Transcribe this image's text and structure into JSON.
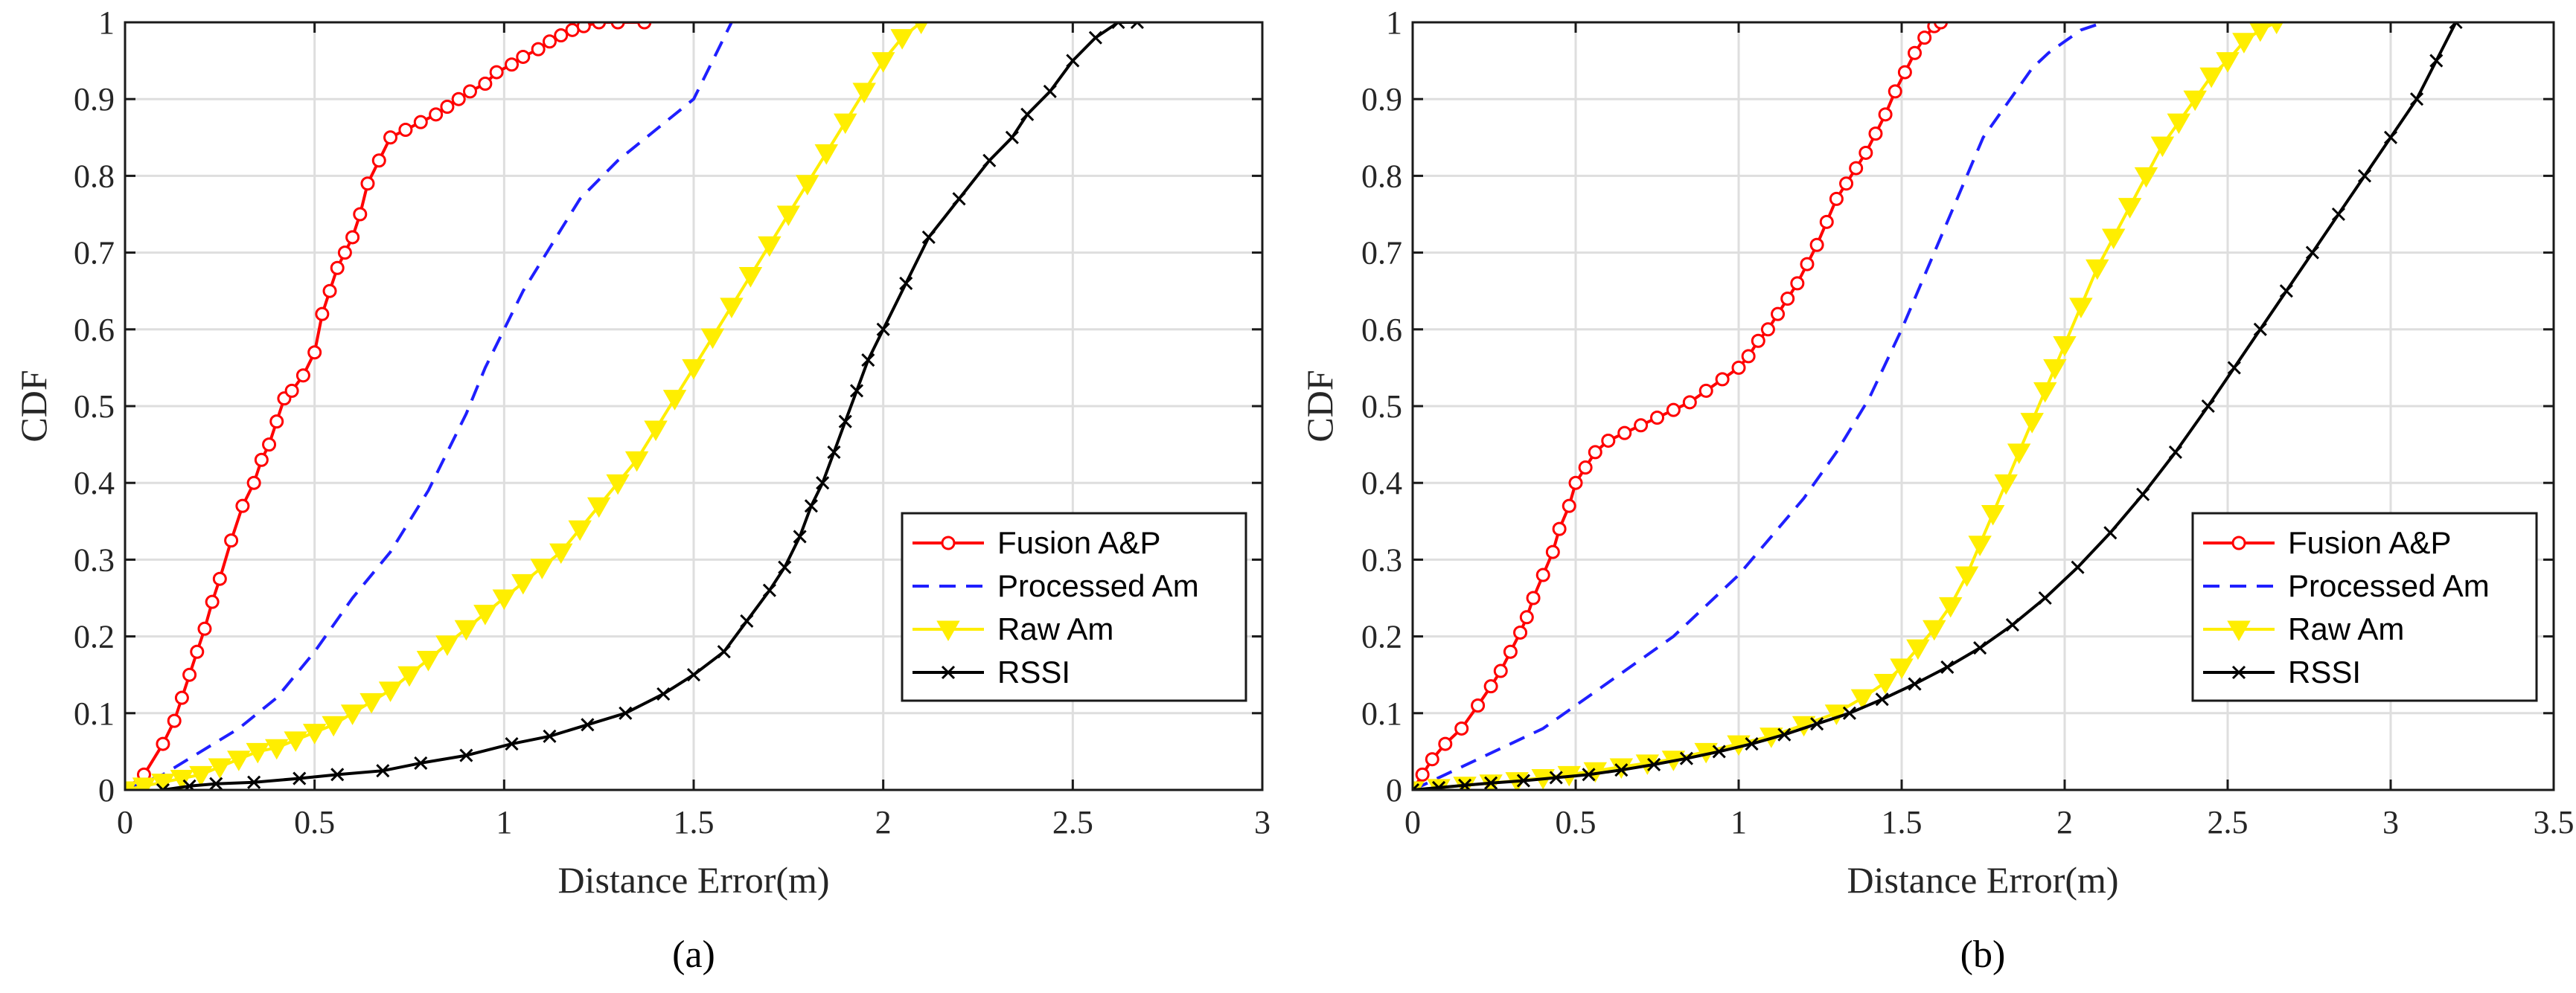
{
  "chart_data": [
    {
      "type": "line",
      "caption": "(a)",
      "xlabel": "Distance Error(m)",
      "ylabel": "CDF",
      "xlim": [
        0,
        3
      ],
      "ylim": [
        0,
        1
      ],
      "xticks": [
        0,
        0.5,
        1,
        1.5,
        2,
        2.5,
        3
      ],
      "xtick_labels": [
        "0",
        "0.5",
        "1",
        "1.5",
        "2",
        "2.5",
        "3"
      ],
      "yticks": [
        0,
        0.1,
        0.2,
        0.3,
        0.4,
        0.5,
        0.6,
        0.7,
        0.8,
        0.9,
        1
      ],
      "ytick_labels": [
        "0",
        "0.1",
        "0.2",
        "0.3",
        "0.4",
        "0.5",
        "0.6",
        "0.7",
        "0.8",
        "0.9",
        "1"
      ],
      "grid": true,
      "legend_position": "bottom-right",
      "series": [
        {
          "name": "Fusion A&P",
          "color": "#ff0000",
          "style": "solid",
          "marker": "circle",
          "x": [
            0,
            0.05,
            0.1,
            0.13,
            0.15,
            0.17,
            0.19,
            0.21,
            0.23,
            0.25,
            0.28,
            0.31,
            0.34,
            0.36,
            0.38,
            0.4,
            0.42,
            0.44,
            0.47,
            0.5,
            0.52,
            0.54,
            0.56,
            0.58,
            0.6,
            0.62,
            0.64,
            0.67,
            0.7,
            0.74,
            0.78,
            0.82,
            0.85,
            0.88,
            0.91,
            0.95,
            0.98,
            1.02,
            1.05,
            1.09,
            1.12,
            1.15,
            1.18,
            1.21,
            1.25,
            1.3,
            1.37
          ],
          "y": [
            0,
            0.02,
            0.06,
            0.09,
            0.12,
            0.15,
            0.18,
            0.21,
            0.245,
            0.275,
            0.325,
            0.37,
            0.4,
            0.43,
            0.45,
            0.48,
            0.51,
            0.52,
            0.54,
            0.57,
            0.62,
            0.65,
            0.68,
            0.7,
            0.72,
            0.75,
            0.79,
            0.82,
            0.85,
            0.86,
            0.87,
            0.88,
            0.89,
            0.9,
            0.91,
            0.92,
            0.935,
            0.945,
            0.955,
            0.965,
            0.975,
            0.983,
            0.99,
            0.995,
            1.0,
            1.0,
            1.0
          ]
        },
        {
          "name": "Processed Am",
          "color": "#1f1fff",
          "style": "dashed",
          "marker": "none",
          "x": [
            0,
            0.1,
            0.2,
            0.3,
            0.4,
            0.5,
            0.6,
            0.7,
            0.8,
            0.85,
            0.9,
            0.95,
            1.0,
            1.05,
            1.1,
            1.15,
            1.2,
            1.3,
            1.4,
            1.5,
            1.55,
            1.6
          ],
          "y": [
            0,
            0.02,
            0.05,
            0.08,
            0.12,
            0.18,
            0.25,
            0.31,
            0.39,
            0.44,
            0.49,
            0.55,
            0.6,
            0.65,
            0.69,
            0.73,
            0.77,
            0.82,
            0.86,
            0.9,
            0.95,
            1.0
          ]
        },
        {
          "name": "Raw Am",
          "color": "#ffee00",
          "style": "solid",
          "marker": "triangle-down",
          "x": [
            0,
            0.05,
            0.1,
            0.15,
            0.2,
            0.25,
            0.3,
            0.35,
            0.4,
            0.45,
            0.5,
            0.55,
            0.6,
            0.65,
            0.7,
            0.75,
            0.8,
            0.85,
            0.9,
            0.95,
            1.0,
            1.05,
            1.1,
            1.15,
            1.2,
            1.25,
            1.3,
            1.35,
            1.4,
            1.45,
            1.5,
            1.55,
            1.6,
            1.65,
            1.7,
            1.75,
            1.8,
            1.85,
            1.9,
            1.95,
            2.0,
            2.05,
            2.1
          ],
          "y": [
            0,
            0.005,
            0.01,
            0.015,
            0.02,
            0.03,
            0.04,
            0.05,
            0.055,
            0.065,
            0.075,
            0.085,
            0.1,
            0.115,
            0.13,
            0.15,
            0.17,
            0.19,
            0.21,
            0.23,
            0.25,
            0.27,
            0.29,
            0.31,
            0.34,
            0.37,
            0.4,
            0.43,
            0.47,
            0.51,
            0.55,
            0.59,
            0.63,
            0.67,
            0.71,
            0.75,
            0.79,
            0.83,
            0.87,
            0.91,
            0.95,
            0.98,
            1.0
          ]
        },
        {
          "name": "RSSI",
          "color": "#000000",
          "style": "solid",
          "marker": "x",
          "x": [
            0.1,
            0.17,
            0.24,
            0.34,
            0.46,
            0.56,
            0.68,
            0.78,
            0.9,
            1.02,
            1.12,
            1.22,
            1.32,
            1.42,
            1.5,
            1.58,
            1.64,
            1.7,
            1.74,
            1.78,
            1.81,
            1.84,
            1.87,
            1.9,
            1.93,
            1.96,
            2.0,
            2.06,
            2.12,
            2.2,
            2.28,
            2.34,
            2.38,
            2.44,
            2.5,
            2.56,
            2.62,
            2.67
          ],
          "y": [
            0,
            0.005,
            0.008,
            0.01,
            0.015,
            0.02,
            0.025,
            0.035,
            0.045,
            0.06,
            0.07,
            0.085,
            0.1,
            0.125,
            0.15,
            0.18,
            0.22,
            0.26,
            0.29,
            0.33,
            0.37,
            0.4,
            0.44,
            0.48,
            0.52,
            0.56,
            0.6,
            0.66,
            0.72,
            0.77,
            0.82,
            0.85,
            0.88,
            0.91,
            0.95,
            0.98,
            1.0,
            1.0
          ]
        }
      ]
    },
    {
      "type": "line",
      "caption": "(b)",
      "xlabel": "Distance Error(m)",
      "ylabel": "CDF",
      "xlim": [
        0,
        3.5
      ],
      "ylim": [
        0,
        1
      ],
      "xticks": [
        0,
        0.5,
        1,
        1.5,
        2,
        2.5,
        3,
        3.5
      ],
      "xtick_labels": [
        "0",
        "0.5",
        "1",
        "1.5",
        "2",
        "2.5",
        "3",
        "3.5"
      ],
      "yticks": [
        0,
        0.1,
        0.2,
        0.3,
        0.4,
        0.5,
        0.6,
        0.7,
        0.8,
        0.9,
        1
      ],
      "ytick_labels": [
        "0",
        "0.1",
        "0.2",
        "0.3",
        "0.4",
        "0.5",
        "0.6",
        "0.7",
        "0.8",
        "0.9",
        "1"
      ],
      "grid": true,
      "legend_position": "bottom-right",
      "series": [
        {
          "name": "Fusion A&P",
          "color": "#ff0000",
          "style": "solid",
          "marker": "circle",
          "x": [
            0,
            0.03,
            0.06,
            0.1,
            0.15,
            0.2,
            0.24,
            0.27,
            0.3,
            0.33,
            0.35,
            0.37,
            0.4,
            0.43,
            0.45,
            0.48,
            0.5,
            0.53,
            0.56,
            0.6,
            0.65,
            0.7,
            0.75,
            0.8,
            0.85,
            0.9,
            0.95,
            1.0,
            1.03,
            1.06,
            1.09,
            1.12,
            1.15,
            1.18,
            1.21,
            1.24,
            1.27,
            1.3,
            1.33,
            1.36,
            1.39,
            1.42,
            1.45,
            1.48,
            1.51,
            1.54,
            1.57,
            1.6,
            1.62
          ],
          "y": [
            0,
            0.02,
            0.04,
            0.06,
            0.08,
            0.11,
            0.135,
            0.155,
            0.18,
            0.205,
            0.225,
            0.25,
            0.28,
            0.31,
            0.34,
            0.37,
            0.4,
            0.42,
            0.44,
            0.455,
            0.465,
            0.475,
            0.485,
            0.495,
            0.505,
            0.52,
            0.535,
            0.55,
            0.565,
            0.585,
            0.6,
            0.62,
            0.64,
            0.66,
            0.685,
            0.71,
            0.74,
            0.77,
            0.79,
            0.81,
            0.83,
            0.855,
            0.88,
            0.91,
            0.935,
            0.96,
            0.98,
            0.995,
            1.0
          ]
        },
        {
          "name": "Processed Am",
          "color": "#1f1fff",
          "style": "dashed",
          "marker": "none",
          "x": [
            0,
            0.1,
            0.2,
            0.3,
            0.4,
            0.5,
            0.6,
            0.7,
            0.8,
            0.9,
            1.0,
            1.1,
            1.2,
            1.3,
            1.4,
            1.5,
            1.6,
            1.65,
            1.7,
            1.75,
            1.8,
            1.85,
            1.9,
            1.95,
            2.0,
            2.05,
            2.12
          ],
          "y": [
            0,
            0.02,
            0.04,
            0.06,
            0.08,
            0.11,
            0.14,
            0.17,
            0.2,
            0.24,
            0.28,
            0.33,
            0.38,
            0.44,
            0.51,
            0.6,
            0.7,
            0.75,
            0.8,
            0.85,
            0.88,
            0.91,
            0.94,
            0.96,
            0.975,
            0.99,
            1.0
          ]
        },
        {
          "name": "Raw Am",
          "color": "#ffee00",
          "style": "solid",
          "marker": "triangle-down",
          "x": [
            0,
            0.08,
            0.16,
            0.24,
            0.32,
            0.4,
            0.48,
            0.56,
            0.64,
            0.72,
            0.8,
            0.9,
            1.0,
            1.1,
            1.2,
            1.3,
            1.38,
            1.45,
            1.5,
            1.55,
            1.6,
            1.65,
            1.7,
            1.74,
            1.78,
            1.82,
            1.86,
            1.9,
            1.94,
            1.97,
            2.0,
            2.05,
            2.1,
            2.15,
            2.2,
            2.25,
            2.3,
            2.35,
            2.4,
            2.45,
            2.5,
            2.55,
            2.6,
            2.65
          ],
          "y": [
            0,
            0.003,
            0.006,
            0.009,
            0.012,
            0.016,
            0.02,
            0.025,
            0.03,
            0.035,
            0.04,
            0.05,
            0.06,
            0.07,
            0.085,
            0.1,
            0.12,
            0.14,
            0.16,
            0.185,
            0.21,
            0.24,
            0.28,
            0.32,
            0.36,
            0.4,
            0.44,
            0.48,
            0.52,
            0.55,
            0.58,
            0.63,
            0.68,
            0.72,
            0.76,
            0.8,
            0.84,
            0.87,
            0.9,
            0.93,
            0.95,
            0.975,
            0.99,
            1.0
          ]
        },
        {
          "name": "RSSI",
          "color": "#000000",
          "style": "solid",
          "marker": "x",
          "x": [
            0,
            0.08,
            0.16,
            0.24,
            0.34,
            0.44,
            0.54,
            0.64,
            0.74,
            0.84,
            0.94,
            1.04,
            1.14,
            1.24,
            1.34,
            1.44,
            1.54,
            1.64,
            1.74,
            1.84,
            1.94,
            2.04,
            2.14,
            2.24,
            2.34,
            2.44,
            2.52,
            2.6,
            2.68,
            2.76,
            2.84,
            2.92,
            3.0,
            3.08,
            3.14,
            3.2
          ],
          "y": [
            0,
            0.003,
            0.006,
            0.009,
            0.012,
            0.016,
            0.02,
            0.026,
            0.033,
            0.041,
            0.05,
            0.06,
            0.072,
            0.086,
            0.1,
            0.118,
            0.138,
            0.16,
            0.185,
            0.215,
            0.25,
            0.29,
            0.335,
            0.385,
            0.44,
            0.5,
            0.55,
            0.6,
            0.65,
            0.7,
            0.75,
            0.8,
            0.85,
            0.9,
            0.95,
            1.0
          ]
        }
      ]
    }
  ]
}
